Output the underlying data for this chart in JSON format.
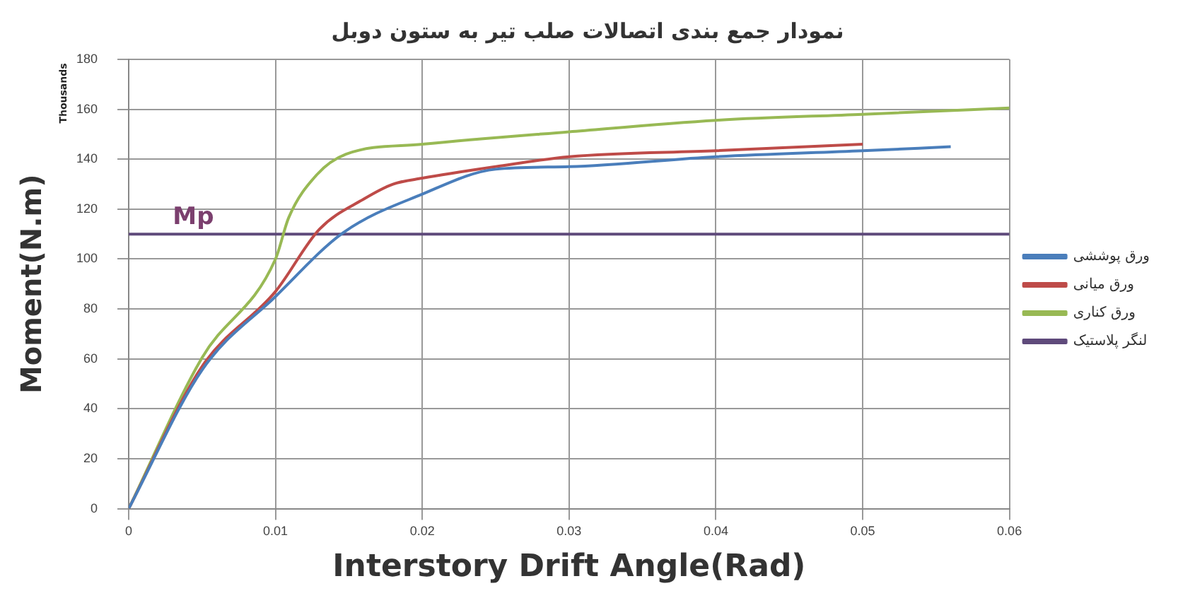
{
  "chart_data": {
    "type": "line",
    "title": "نمودار جمع بندی اتصالات صلب تیر به ستون دوبل",
    "xlabel": "Interstory Drift Angle(Rad)",
    "ylabel": "Moment(N.m)",
    "annotations": [
      "Thousands",
      {
        "text": "Mp",
        "x": 0.003,
        "y": 110
      }
    ],
    "series": [
      {
        "name": "ورق پوششی",
        "color": "#4a7ebb",
        "x": [
          0,
          0.005,
          0.01,
          0.0146,
          0.02,
          0.025,
          0.03,
          0.04,
          0.05,
          0.056
        ],
        "values": [
          0,
          55.6,
          85,
          110.5,
          126,
          136,
          137,
          141,
          143.4,
          145
        ]
      },
      {
        "name": "ورق میانی",
        "color": "#be4b48",
        "x": [
          0,
          0.005,
          0.01,
          0.013,
          0.016,
          0.018,
          0.02,
          0.025,
          0.03,
          0.04,
          0.05
        ],
        "values": [
          0,
          57,
          87,
          112,
          124,
          130,
          132.4,
          137,
          141,
          143.4,
          146
        ]
      },
      {
        "name": "ورق کناری",
        "color": "#98b954",
        "x": [
          0,
          0.005,
          0.01,
          0.0109,
          0.0128,
          0.0148,
          0.02,
          0.03,
          0.04,
          0.05,
          0.06
        ],
        "values": [
          0,
          60.5,
          100,
          116.6,
          133.7,
          142,
          146,
          151,
          155.6,
          158,
          160.5
        ]
      },
      {
        "name": "لنگر پلاستیک",
        "color": "#5f4a7b",
        "x": [
          0,
          0.06
        ],
        "values": [
          110,
          110
        ]
      }
    ],
    "xlim": [
      0,
      0.06
    ],
    "xticks": [
      0,
      0.01,
      0.02,
      0.03,
      0.04,
      0.05,
      0.06
    ],
    "ylim": [
      0,
      180
    ],
    "yticks": [
      0,
      20,
      40,
      60,
      80,
      100,
      120,
      140,
      160,
      180
    ],
    "grid": true,
    "legend": "right",
    "marker": "none",
    "line_style": "solid"
  }
}
